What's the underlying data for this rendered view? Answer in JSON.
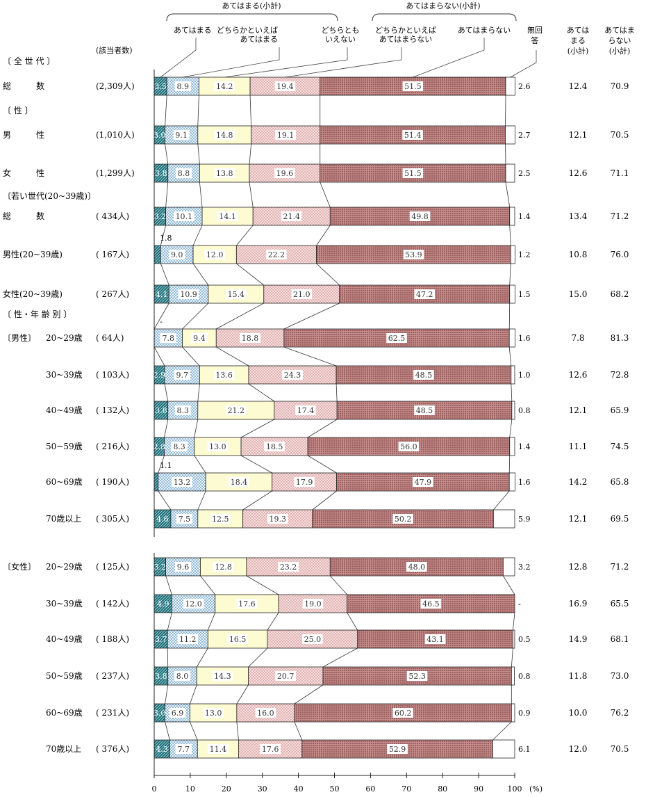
{
  "chart_data": {
    "type": "bar",
    "orientation": "horizontal",
    "stacked": true,
    "xlim": [
      0,
      100
    ],
    "x_unit": "(%)",
    "x_ticks": [
      "0",
      "10",
      "20",
      "30",
      "40",
      "50",
      "60",
      "70",
      "80",
      "90",
      "100"
    ],
    "legend": {
      "group_applies": "あてはまる(小計)",
      "group_not_applies": "あてはまらない(小計)",
      "items": [
        "あてはまる",
        "どちらかといえばあてはまる",
        "どちらともいえない",
        "どちらかといえばあてはまらない",
        "あてはまらない",
        "無回答"
      ]
    },
    "column_headers": {
      "count": "(該当者数)",
      "no_answer": "無回答",
      "applies_subtotal": "あてはまる(小計)",
      "not_applies_subtotal": "あてはまらない(小計)"
    },
    "series": [
      {
        "name": "あてはまる",
        "color": "#1f6f78"
      },
      {
        "name": "どちらかといえばあてはまる",
        "color": "#cfe3ee"
      },
      {
        "name": "どちらともいえない",
        "color": "#fdfbd2"
      },
      {
        "name": "どちらかといえばあてはまらない",
        "color": "#eec4c4"
      },
      {
        "name": "あてはまらない",
        "color": "#a86a6a"
      },
      {
        "name": "無回答",
        "color": "#ffffff"
      }
    ],
    "section_labels": [
      {
        "label": "〔 全 世 代 〕",
        "before_row": 0
      },
      {
        "label": "〔   性   〕",
        "before_row": 1
      },
      {
        "label": "〔若い世代(20~39歳)〕",
        "before_row": 3
      },
      {
        "label": "〔 性・年 齢 別 〕",
        "before_row": 6
      }
    ],
    "rows": [
      {
        "group": "",
        "label": "総　　　数",
        "n": "(2,309人)",
        "values": [
          3.5,
          8.9,
          14.2,
          19.4,
          51.5,
          2.6
        ],
        "applies": "12.4",
        "not_applies": "70.9"
      },
      {
        "group": "",
        "label": "男　　　性",
        "n": "(1,010人)",
        "values": [
          3.0,
          9.1,
          14.8,
          19.1,
          51.4,
          2.7
        ],
        "applies": "12.1",
        "not_applies": "70.5"
      },
      {
        "group": "",
        "label": "女　　　性",
        "n": "(1,299人)",
        "values": [
          3.8,
          8.8,
          13.8,
          19.6,
          51.5,
          2.5
        ],
        "applies": "12.6",
        "not_applies": "71.1"
      },
      {
        "group": "",
        "label": "総　　　数",
        "n": "( 434人)",
        "values": [
          3.2,
          10.1,
          14.1,
          21.4,
          49.8,
          1.4
        ],
        "applies": "13.4",
        "not_applies": "71.2"
      },
      {
        "group": "",
        "label": "男性(20~39歳)",
        "n": "( 167人)",
        "values": [
          1.8,
          9.0,
          12.0,
          22.2,
          53.9,
          1.2
        ],
        "applies": "10.8",
        "not_applies": "76.0"
      },
      {
        "group": "",
        "label": "女性(20~39歳)",
        "n": "( 267人)",
        "values": [
          4.1,
          10.9,
          15.4,
          21.0,
          47.2,
          1.5
        ],
        "applies": "15.0",
        "not_applies": "68.2"
      },
      {
        "group": "〔男性〕",
        "label": "20~29歳",
        "n": "( 64人)",
        "values": [
          0.0,
          7.8,
          9.4,
          18.8,
          62.5,
          1.6
        ],
        "applies": "7.8",
        "not_applies": "81.3"
      },
      {
        "group": "",
        "label": "30~39歳",
        "n": "( 103人)",
        "values": [
          2.9,
          9.7,
          13.6,
          24.3,
          48.5,
          1.0
        ],
        "applies": "12.6",
        "not_applies": "72.8"
      },
      {
        "group": "",
        "label": "40~49歳",
        "n": "( 132人)",
        "values": [
          3.8,
          8.3,
          21.2,
          17.4,
          48.5,
          0.8
        ],
        "applies": "12.1",
        "not_applies": "65.9"
      },
      {
        "group": "",
        "label": "50~59歳",
        "n": "( 216人)",
        "values": [
          2.8,
          8.3,
          13.0,
          18.5,
          56.0,
          1.4
        ],
        "applies": "11.1",
        "not_applies": "74.5"
      },
      {
        "group": "",
        "label": "60~69歳",
        "n": "( 190人)",
        "values": [
          1.1,
          13.2,
          18.4,
          17.9,
          47.9,
          1.6
        ],
        "applies": "14.2",
        "not_applies": "65.8"
      },
      {
        "group": "",
        "label": "70歳以上",
        "n": "( 305人)",
        "values": [
          4.6,
          7.5,
          12.5,
          19.3,
          50.2,
          5.9
        ],
        "applies": "12.1",
        "not_applies": "69.5"
      },
      {
        "group": "〔女性〕",
        "label": "20~29歳",
        "n": "( 125人)",
        "values": [
          3.2,
          9.6,
          12.8,
          23.2,
          48.0,
          3.2
        ],
        "applies": "12.8",
        "not_applies": "71.2"
      },
      {
        "group": "",
        "label": "30~39歳",
        "n": "( 142人)",
        "values": [
          4.9,
          12.0,
          17.6,
          19.0,
          46.5,
          0.0
        ],
        "applies": "16.9",
        "not_applies": "65.5"
      },
      {
        "group": "",
        "label": "40~49歳",
        "n": "( 188人)",
        "values": [
          3.7,
          11.2,
          16.5,
          25.0,
          43.1,
          0.5
        ],
        "applies": "14.9",
        "not_applies": "68.1"
      },
      {
        "group": "",
        "label": "50~59歳",
        "n": "( 237人)",
        "values": [
          3.8,
          8.0,
          14.3,
          20.7,
          52.3,
          0.8
        ],
        "applies": "11.8",
        "not_applies": "73.0"
      },
      {
        "group": "",
        "label": "60~69歳",
        "n": "( 231人)",
        "values": [
          3.0,
          6.9,
          13.0,
          16.0,
          60.2,
          0.9
        ],
        "applies": "10.0",
        "not_applies": "76.2"
      },
      {
        "group": "",
        "label": "70歳以上",
        "n": "( 376人)",
        "values": [
          4.3,
          7.7,
          11.4,
          17.6,
          52.9,
          6.1
        ],
        "applies": "12.0",
        "not_applies": "70.5"
      }
    ],
    "segment_labels": [
      [
        "3.5",
        "8.9",
        "14.2",
        "19.4",
        "51.5",
        "2.6"
      ],
      [
        "3.0",
        "9.1",
        "14.8",
        "19.1",
        "51.4",
        "2.7"
      ],
      [
        "3.8",
        "8.8",
        "13.8",
        "19.6",
        "51.5",
        "2.5"
      ],
      [
        "3.2",
        "10.1",
        "14.1",
        "21.4",
        "49.8",
        "1.4"
      ],
      [
        "1.8",
        "9.0",
        "12.0",
        "22.2",
        "53.9",
        "1.2"
      ],
      [
        "4.1",
        "10.9",
        "15.4",
        "21.0",
        "47.2",
        "1.5"
      ],
      [
        "-",
        "7.8",
        "9.4",
        "18.8",
        "62.5",
        "1.6"
      ],
      [
        "2.9",
        "9.7",
        "13.6",
        "24.3",
        "48.5",
        "1.0"
      ],
      [
        "3.8",
        "8.3",
        "21.2",
        "17.4",
        "48.5",
        "0.8"
      ],
      [
        "2.8",
        "8.3",
        "13.0",
        "18.5",
        "56.0",
        "1.4"
      ],
      [
        "1.1",
        "13.2",
        "18.4",
        "17.9",
        "47.9",
        "1.6"
      ],
      [
        "4.6",
        "7.5",
        "12.5",
        "19.3",
        "50.2",
        "5.9"
      ],
      [
        "3.2",
        "9.6",
        "12.8",
        "23.2",
        "48.0",
        "3.2"
      ],
      [
        "4.9",
        "12.0",
        "17.6",
        "19.0",
        "46.5",
        "-"
      ],
      [
        "3.7",
        "11.2",
        "16.5",
        "25.0",
        "43.1",
        "0.5"
      ],
      [
        "3.8",
        "8.0",
        "14.3",
        "20.7",
        "52.3",
        "0.8"
      ],
      [
        "3.0",
        "6.9",
        "13.0",
        "16.0",
        "60.2",
        "0.9"
      ],
      [
        "4.3",
        "7.7",
        "11.4",
        "17.6",
        "52.9",
        "6.1"
      ]
    ]
  }
}
